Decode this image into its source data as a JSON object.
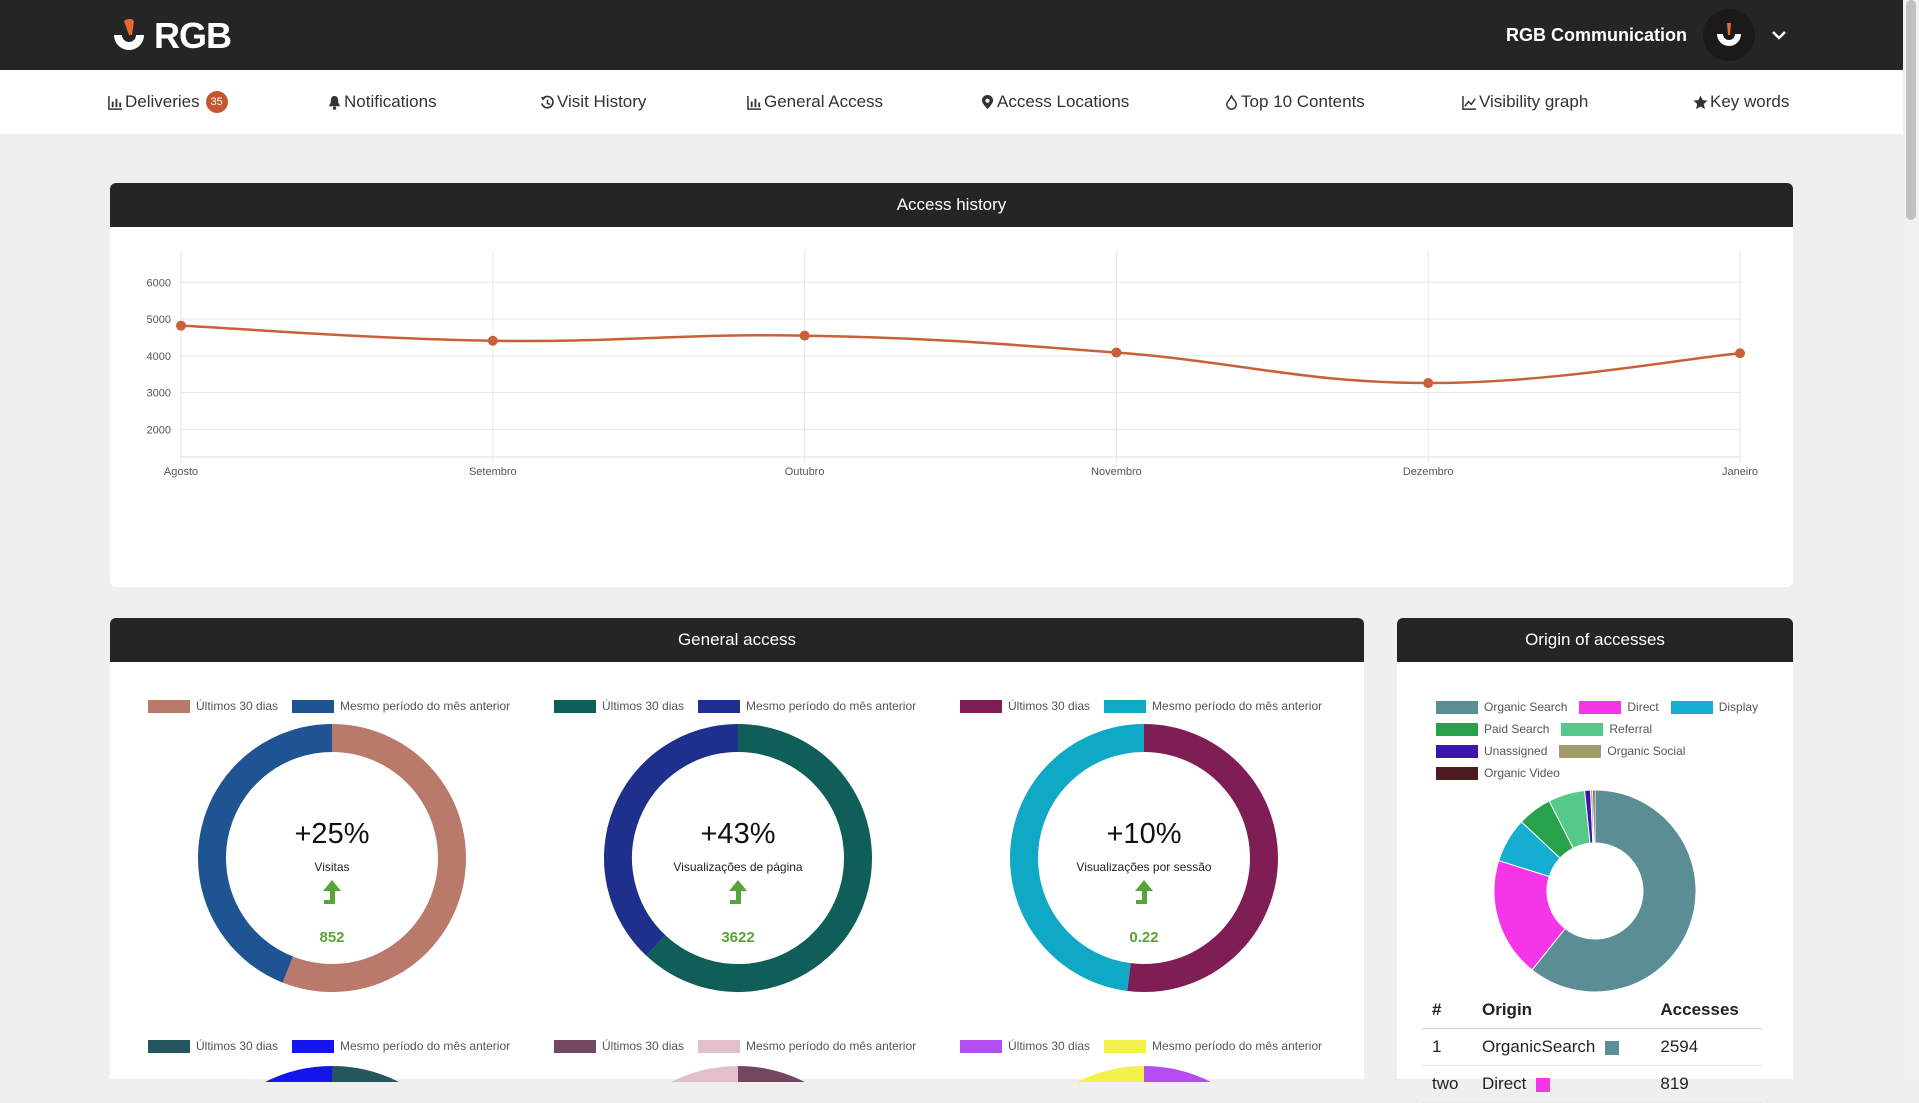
{
  "header": {
    "logo_text": "RGB",
    "account_name": "RGB Communication"
  },
  "nav": {
    "deliveries": "Deliveries",
    "deliveries_badge": "35",
    "notifications": "Notifications",
    "visit_history": "Visit History",
    "general_access": "General Access",
    "access_locations": "Access Locations",
    "top10": "Top 10 Contents",
    "visibility": "Visibility graph",
    "keywords": "Key words"
  },
  "access_history": {
    "title": "Access history",
    "chart_data": {
      "type": "line",
      "categories": [
        "Agosto",
        "Setembro",
        "Outubro",
        "Novembro",
        "Dezembro",
        "Janeiro"
      ],
      "values": [
        4820,
        4410,
        4550,
        4090,
        3260,
        4070
      ],
      "yticks": [
        2000,
        3000,
        4000,
        5000,
        6000
      ],
      "ylim": [
        1250,
        6850
      ],
      "grid": true,
      "color": "#c8613a"
    }
  },
  "general_access": {
    "title": "General access",
    "legend_current": "Últimos 30 dias",
    "legend_previous": "Mesmo período do mês anterior",
    "donuts": [
      {
        "pct": "+25%",
        "metric": "Visitas",
        "value": "852",
        "current": 56,
        "colors": [
          "#b97a6b",
          "#1d5491"
        ]
      },
      {
        "pct": "+43%",
        "metric": "Visualizações de página",
        "value": "3622",
        "current": 62,
        "colors": [
          "#0f5e57",
          "#1f2f8c"
        ]
      },
      {
        "pct": "+10%",
        "metric": "Visualizações por sessão",
        "value": "0.22",
        "current": 52,
        "colors": [
          "#7e1e55",
          "#0fa9c6"
        ]
      }
    ],
    "second_row_legends": [
      {
        "colors": [
          "#23575d",
          "#1515ee"
        ]
      },
      {
        "colors": [
          "#734760",
          "#e1c0cb"
        ]
      },
      {
        "colors": [
          "#b34ef0",
          "#f2f24b"
        ]
      }
    ]
  },
  "origin": {
    "title": "Origin of accesses",
    "legend": [
      {
        "label": "Organic Search",
        "color": "#5a8e94"
      },
      {
        "label": "Direct",
        "color": "#f535e8"
      },
      {
        "label": "Display",
        "color": "#16aed0"
      },
      {
        "label": "Paid Search",
        "color": "#27a14c"
      },
      {
        "label": "Referral",
        "color": "#54c98a"
      },
      {
        "label": "Unassigned",
        "color": "#3c14b0"
      },
      {
        "label": "Organic Social",
        "color": "#a29c6a"
      },
      {
        "label": "Organic Video",
        "color": "#4a1c22"
      }
    ],
    "chart_data": {
      "type": "pie",
      "labels": [
        "Organic Search",
        "Direct",
        "Display",
        "Paid Search",
        "Referral",
        "Unassigned",
        "Organic Social",
        "Organic Video"
      ],
      "values": [
        2594,
        819,
        305,
        235,
        250,
        40,
        15,
        15
      ]
    },
    "table": {
      "headers": [
        "#",
        "Origin",
        "Accesses"
      ],
      "rows": [
        {
          "n": "1",
          "origin": "OrganicSearch",
          "accesses": "2594",
          "color": "#5a8e94"
        },
        {
          "n": "two",
          "origin": "Direct",
          "accesses": "819",
          "color": "#f535e8"
        }
      ]
    }
  }
}
